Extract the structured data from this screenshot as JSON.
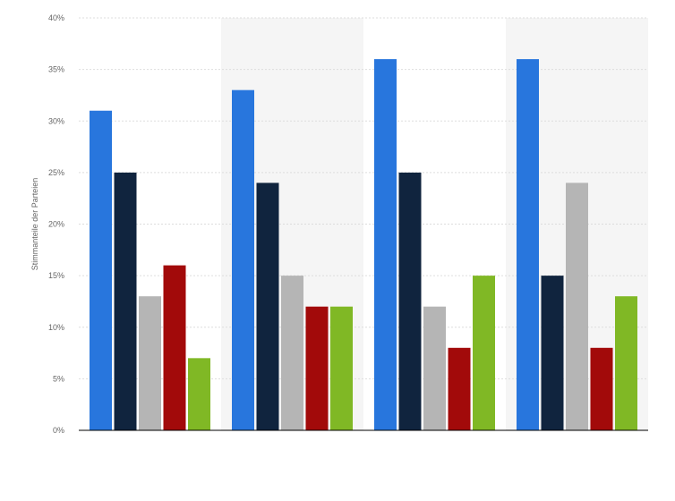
{
  "chart_data": {
    "type": "bar",
    "title": "",
    "xlabel": "",
    "ylabel": "Stimmanteile der Parteien",
    "ylim": [
      0,
      40
    ],
    "yticks": [
      "0%",
      "5%",
      "10%",
      "15%",
      "20%",
      "25%",
      "30%",
      "35%",
      "40%"
    ],
    "categories": [
      "",
      "",
      "",
      ""
    ],
    "grid": true,
    "legend": "none",
    "series": [
      {
        "color": "#2876dd",
        "values": [
          31,
          33,
          36,
          36
        ]
      },
      {
        "color": "#10243e",
        "values": [
          25,
          24,
          25,
          15
        ]
      },
      {
        "color": "#b5b5b5",
        "values": [
          13,
          15,
          12,
          24
        ]
      },
      {
        "color": "#a20a0a",
        "values": [
          16,
          12,
          8,
          8
        ]
      },
      {
        "color": "#80b825",
        "values": [
          7,
          12,
          15,
          13
        ]
      }
    ]
  }
}
